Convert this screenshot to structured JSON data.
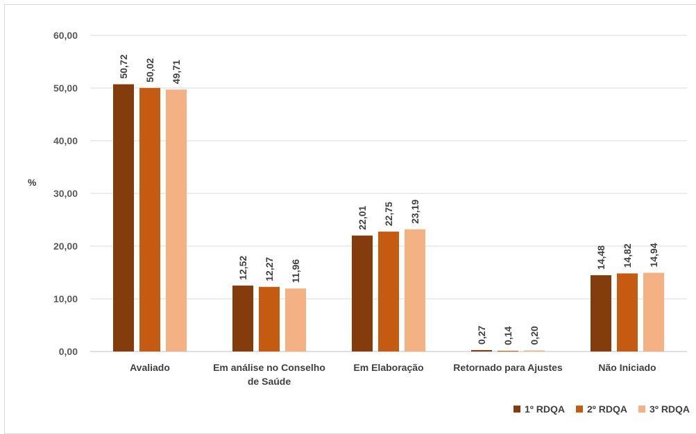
{
  "chart_data": {
    "type": "bar",
    "ylabel": "%",
    "ylim": [
      0,
      60
    ],
    "yticks": [
      "0,00",
      "10,00",
      "20,00",
      "30,00",
      "40,00",
      "50,00",
      "60,00"
    ],
    "categories": [
      [
        "Avaliado"
      ],
      [
        "Em análise no Conselho",
        "de Saúde"
      ],
      [
        "Em Elaboração"
      ],
      [
        "Retornado para Ajustes"
      ],
      [
        "Não Iniciado"
      ]
    ],
    "series": [
      {
        "name": "1º RDQA",
        "color": "#843c0c",
        "values": [
          50.72,
          12.52,
          22.01,
          0.27,
          14.48
        ],
        "labels": [
          "50,72",
          "12,52",
          "22,01",
          "0,27",
          "14,48"
        ]
      },
      {
        "name": "2º RDQA",
        "color": "#c55a11",
        "values": [
          50.02,
          12.27,
          22.75,
          0.14,
          14.82
        ],
        "labels": [
          "50,02",
          "12,27",
          "22,75",
          "0,14",
          "14,82"
        ]
      },
      {
        "name": "3º RDQA",
        "color": "#f4b183",
        "values": [
          49.71,
          11.96,
          23.19,
          0.2,
          14.94
        ],
        "labels": [
          "49,71",
          "11,96",
          "23,19",
          "0,20",
          "14,94"
        ]
      }
    ],
    "grid": true,
    "legend_position": "bottom-right"
  }
}
